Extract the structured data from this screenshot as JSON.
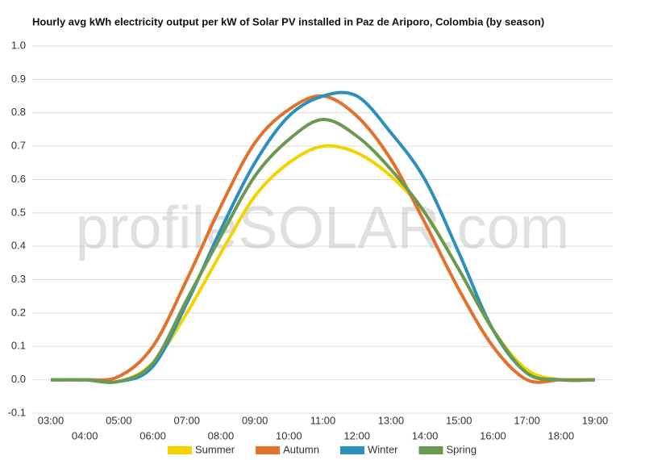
{
  "chart_data": {
    "type": "line",
    "title": "Hourly avg kWh electricity output per kW of Solar PV installed in Paz de Ariporo, Colombia (by season)",
    "watermark": "profileSOLAR.com",
    "categories": [
      "03:00",
      "04:00",
      "05:00",
      "06:00",
      "07:00",
      "08:00",
      "09:00",
      "10:00",
      "11:00",
      "12:00",
      "13:00",
      "14:00",
      "15:00",
      "16:00",
      "17:00",
      "18:00",
      "19:00"
    ],
    "series": [
      {
        "name": "Summer",
        "color": "#f5d300",
        "values": [
          0,
          0,
          -0.005,
          0.05,
          0.2,
          0.38,
          0.55,
          0.65,
          0.7,
          0.68,
          0.61,
          0.5,
          0.33,
          0.15,
          0.03,
          0,
          0
        ]
      },
      {
        "name": "Autumn",
        "color": "#e3712b",
        "values": [
          0,
          0,
          0.01,
          0.1,
          0.3,
          0.52,
          0.71,
          0.81,
          0.85,
          0.79,
          0.66,
          0.47,
          0.27,
          0.1,
          0,
          0,
          0
        ]
      },
      {
        "name": "Winter",
        "color": "#2b8fbf",
        "values": [
          0,
          0,
          -0.005,
          0.04,
          0.23,
          0.45,
          0.65,
          0.79,
          0.85,
          0.85,
          0.74,
          0.6,
          0.38,
          0.15,
          0.02,
          0,
          0
        ]
      },
      {
        "name": "Spring",
        "color": "#6a9a52",
        "values": [
          0,
          0,
          -0.005,
          0.05,
          0.24,
          0.43,
          0.61,
          0.72,
          0.78,
          0.73,
          0.63,
          0.5,
          0.33,
          0.15,
          0.02,
          0,
          0
        ]
      }
    ],
    "ylim": [
      -0.1,
      1.0
    ],
    "yticks": [
      -0.1,
      {
        "value": 0,
        "label": "0.0"
      },
      0.1,
      0.2,
      0.3,
      0.4,
      0.5,
      0.6,
      0.7,
      0.8,
      0.9,
      {
        "value": 1,
        "label": "1.0"
      }
    ],
    "grid": true,
    "legend": "bottom"
  }
}
